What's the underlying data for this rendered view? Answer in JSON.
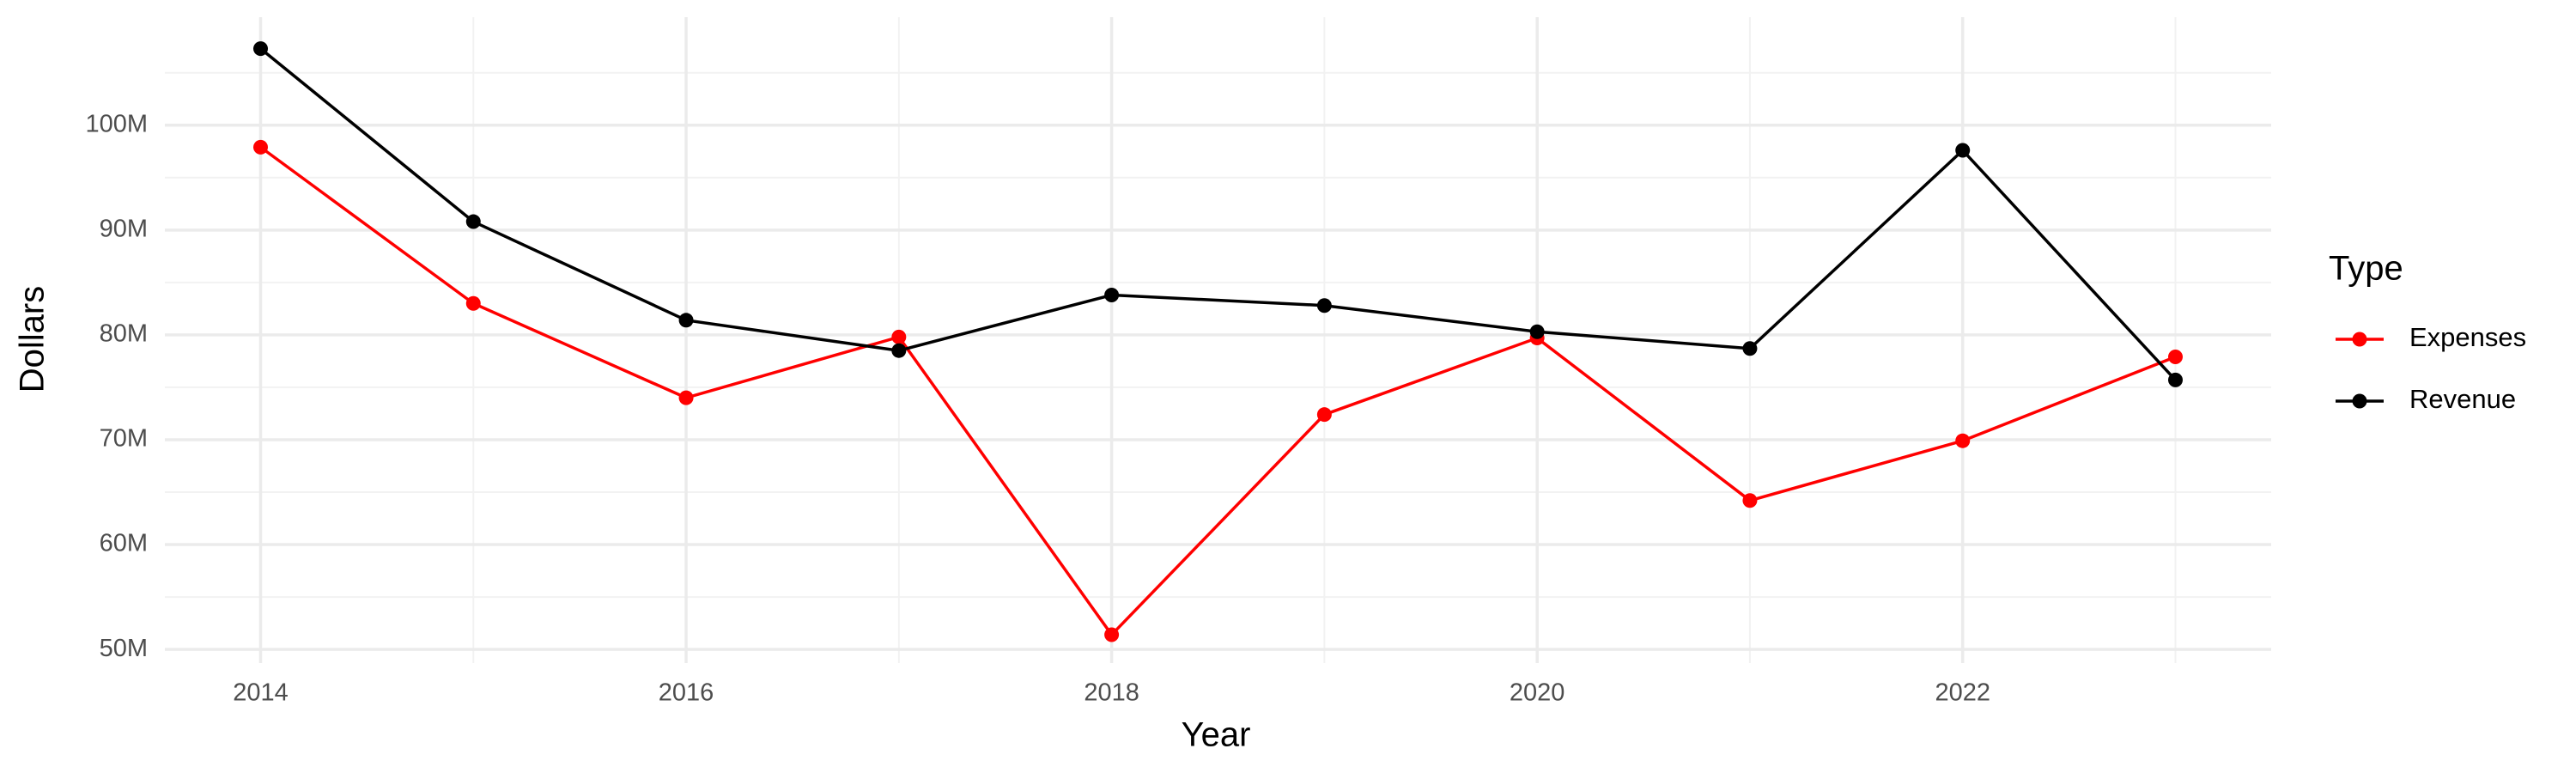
{
  "chart_data": {
    "type": "line",
    "x_label": "Year",
    "y_label": "Dollars",
    "legend_title": "Type",
    "legend": "right",
    "grid": true,
    "x": [
      2014,
      2015,
      2016,
      2017,
      2018,
      2019,
      2020,
      2021,
      2022,
      2023
    ],
    "series": [
      {
        "name": "Expenses",
        "color": "#ff0000",
        "values": [
          97900000,
          83000000,
          74000000,
          79800000,
          51400000,
          72400000,
          79700000,
          64200000,
          69900000,
          77900000
        ]
      },
      {
        "name": "Revenue",
        "color": "#000000",
        "values": [
          107300000,
          90800000,
          81400000,
          78500000,
          83800000,
          82800000,
          80300000,
          78700000,
          97600000,
          75700000
        ]
      }
    ],
    "xlim": [
      2013.55,
      2023.45
    ],
    "xticks": [
      2014,
      2016,
      2018,
      2020,
      2022
    ],
    "ylim": [
      48700000,
      110300000
    ],
    "yticks": [
      {
        "value": 50000000,
        "label": "50M"
      },
      {
        "value": 60000000,
        "label": "60M"
      },
      {
        "value": 70000000,
        "label": "70M"
      },
      {
        "value": 80000000,
        "label": "80M"
      },
      {
        "value": 90000000,
        "label": "90M"
      },
      {
        "value": 100000000,
        "label": "100M"
      }
    ]
  }
}
